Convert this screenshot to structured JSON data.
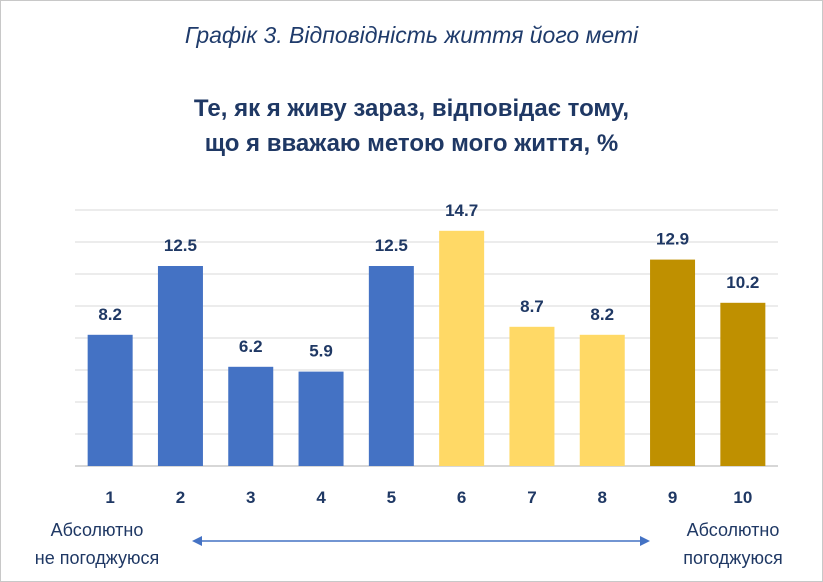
{
  "caption": "Графік 3. Відповідність життя його меті",
  "chart_data": {
    "type": "bar",
    "title_lines": [
      "Те, як я живу зараз, відповідає тому,",
      "що я вважаю метою мого життя, %"
    ],
    "categories": [
      "1",
      "2",
      "3",
      "4",
      "5",
      "6",
      "7",
      "8",
      "9",
      "10"
    ],
    "values": [
      8.2,
      12.5,
      6.2,
      5.9,
      12.5,
      14.7,
      8.7,
      8.2,
      12.9,
      10.2
    ],
    "value_labels": [
      "8.2",
      "12.5",
      "6.2",
      "5.9",
      "12.5",
      "14.7",
      "8.7",
      "8.2",
      "12.9",
      "10.2"
    ],
    "colors": [
      "#4472c4",
      "#4472c4",
      "#4472c4",
      "#4472c4",
      "#4472c4",
      "#ffd966",
      "#ffd966",
      "#ffd966",
      "#bf9000",
      "#bf9000"
    ],
    "ylim": [
      0,
      16
    ],
    "grid": true,
    "grid_color": "#d9d9d9"
  },
  "scale": {
    "left_lines": [
      "Абсолютно",
      "не погоджуюся"
    ],
    "right_lines": [
      "Абсолютно",
      "погоджуюся"
    ],
    "arrow_color": "#4472c4"
  }
}
